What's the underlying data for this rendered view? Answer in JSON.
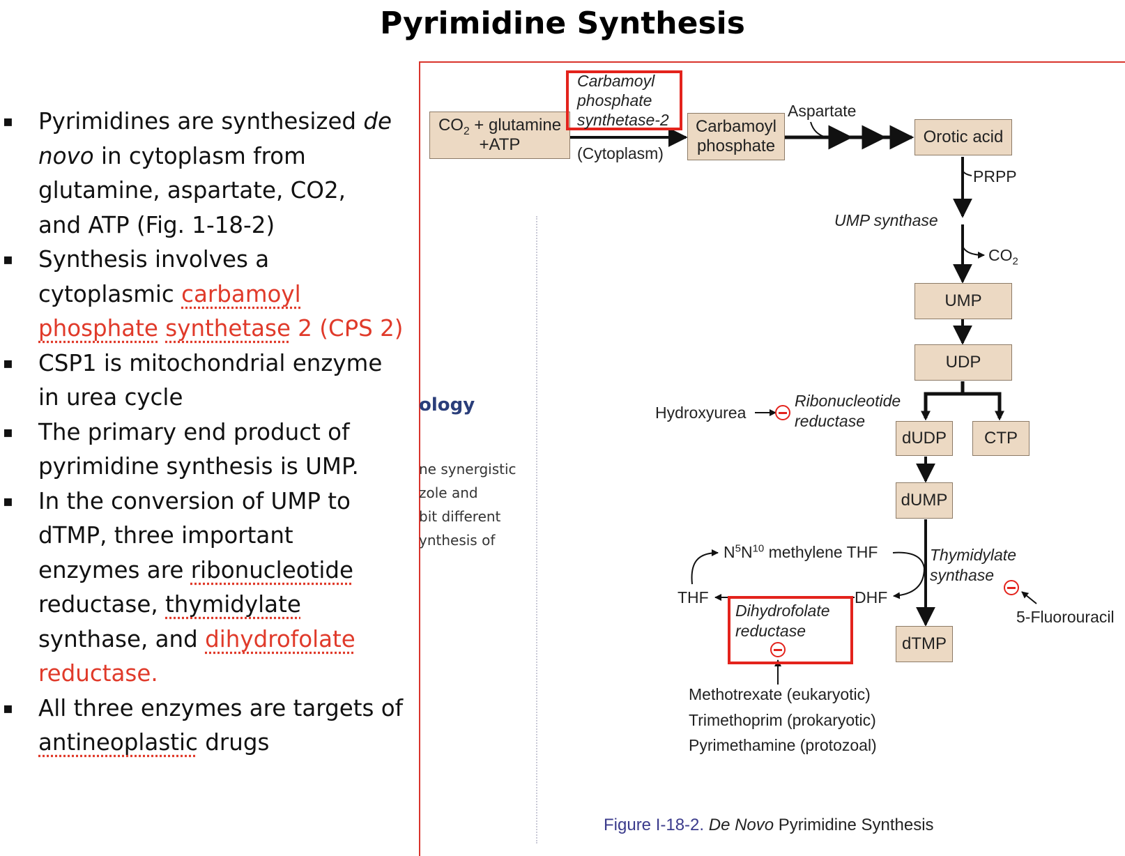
{
  "slide": {
    "title": "Pyrimidine Synthesis"
  },
  "bullets": [
    {
      "a": "Pyrimidines are synthesized ",
      "b": "de novo",
      "c": " in cytoplasm from",
      "d": "glutamine, aspartate, CO2,",
      "e": "and ATP  (Fig. 1-18-2)"
    },
    {
      "a": "Synthesis involves a",
      "b": "cytoplasmic ",
      "c": "carbamoyl",
      "d": "phosphate",
      "e": " ",
      "f": "synthetase",
      "g": " 2 (C",
      "h": "ᑭS",
      "i": " 2)"
    },
    {
      "a": "CSP1 is mitochondrial enzyme",
      "b": "in urea cycle"
    },
    {
      "a": "The primary end product of",
      "b": "pyrimidine synthesis is UMP."
    },
    {
      "a": "In the conversion of UMP to",
      "b": "dTMP, three important",
      "c": "enzymes are ",
      "d": "ribonucleotide",
      "e": "reductase, ",
      "f": "thymidylate",
      "g": "synthase, and ",
      "h": "dihydrofolate",
      "i": "reductase."
    },
    {
      "a": "All three enzymes are targets of",
      "b": "antineoplastic",
      "c": " drugs"
    }
  ],
  "background_text": {
    "heading": "ology",
    "lines": [
      "ne synergistic",
      "zole and",
      "bit different",
      "ynthesis of"
    ]
  },
  "diagram": {
    "nodes": {
      "start_a": "CO",
      "start_b": "2",
      "start_c": " + glutamine",
      "start_d": "+ATP",
      "carbamoyl_phosphate_a": "Carbamoyl",
      "carbamoyl_phosphate_b": "phosphate",
      "orotic_acid": "Orotic acid",
      "ump": "UMP",
      "udp": "UDP",
      "dudp": "dUDP",
      "ctp": "CTP",
      "dump": "dUMP",
      "dtmp": "dTMP"
    },
    "enzymes": {
      "cps2_a": "Carbamoyl",
      "cps2_b": "phosphate",
      "cps2_c": "synthetase-2",
      "ump_synthase": "UMP synthase",
      "rnr_a": "Ribonucleotide",
      "rnr_b": "reductase",
      "ts_a": "Thymidylate",
      "ts_b": "synthase",
      "dhfr_a": "Dihydrofolate",
      "dhfr_b": "reductase"
    },
    "labels": {
      "cytoplasm": "(Cytoplasm)",
      "aspartate": "Aspartate",
      "prpp": "PRPP",
      "co2_a": "CO",
      "co2_b": "2",
      "hydroxyurea": "Hydroxyurea",
      "n5n10_a": "N",
      "n5n10_b": "5",
      "n5n10_c": "N",
      "n5n10_d": "10",
      "n5n10_e": " methylene THF",
      "thf": "THF",
      "dhf": "DHF",
      "fluorouracil": "5-Fluorouracil",
      "drugs": [
        "Methotrexate (eukaryotic)",
        "Trimethoprim (prokaryotic)",
        "Pyrimethamine (protozoal)"
      ]
    }
  },
  "caption": {
    "label": "Figure I-18-2.",
    "title_italic": "De Novo",
    "title_rest": " Pyrimidine Synthesis"
  },
  "colors": {
    "box_fill": "#ecd9c3",
    "highlight_red": "#e3231c",
    "text_red": "#e03a2a",
    "caption_blue": "#3b3b8c"
  }
}
